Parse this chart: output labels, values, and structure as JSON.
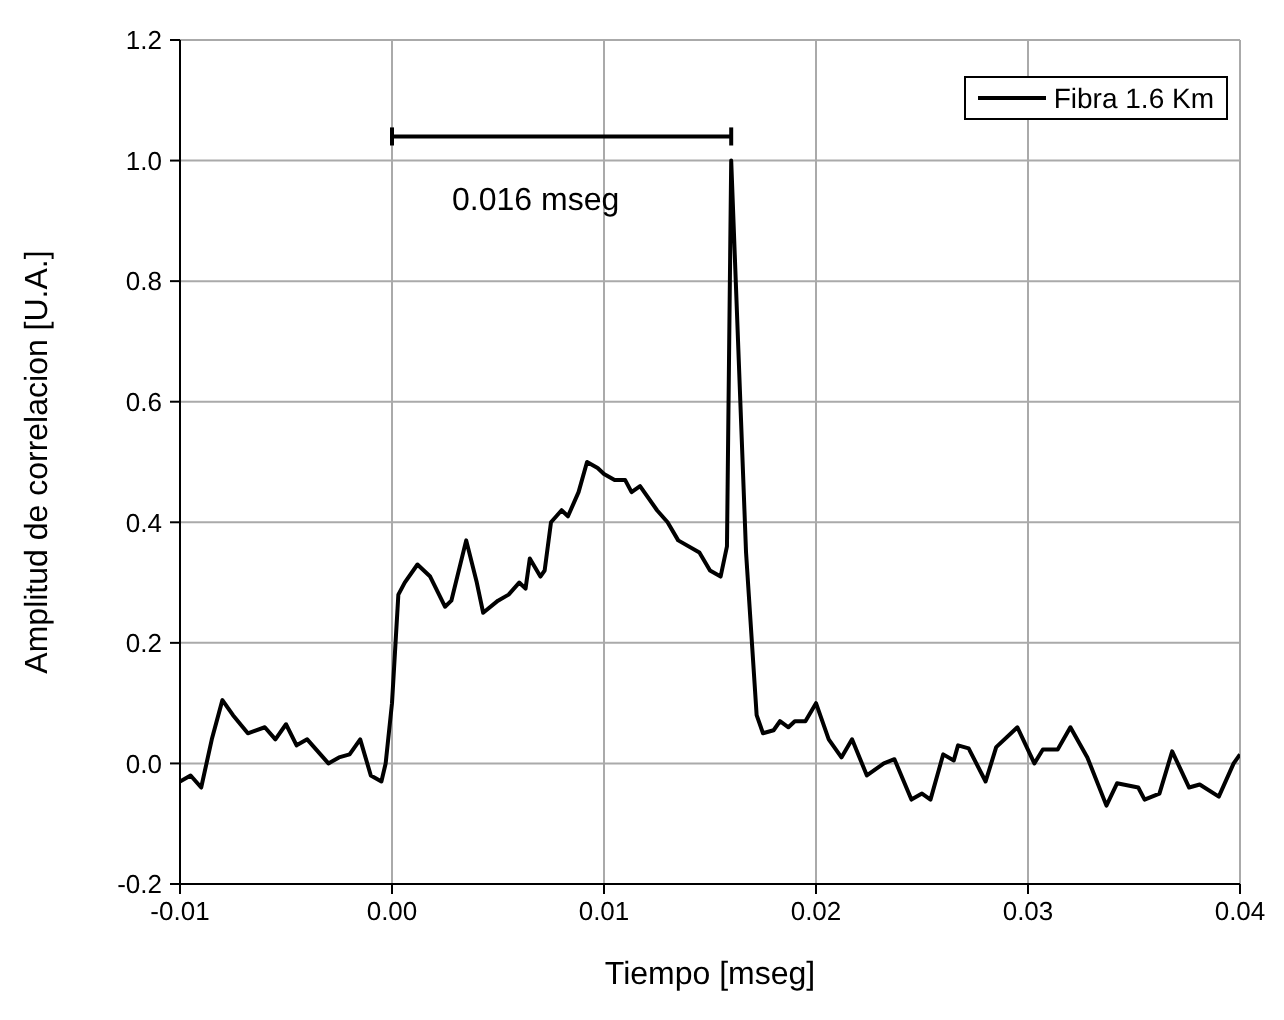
{
  "chart_data": {
    "type": "line",
    "xlabel": "Tiempo [mseg]",
    "ylabel": "Amplitud de correlacion [U.A.]",
    "xlim": [
      -0.01,
      0.04
    ],
    "xticks": [
      -0.01,
      {
        "value": 0.0,
        "label": "0.00"
      },
      0.01,
      0.02,
      0.03,
      0.04
    ],
    "ylim": [
      -0.2,
      1.2
    ],
    "yticks": [
      -0.2,
      {
        "value": 0.0,
        "label": "0.0"
      },
      0.2,
      0.4,
      0.6,
      0.8,
      {
        "value": 1.0,
        "label": "1.0"
      },
      1.2
    ],
    "grid": true,
    "legend": "top right",
    "marker": "none",
    "line_style": "solid",
    "annotations": [
      "0.016 mseg"
    ],
    "series": [
      {
        "name": "Fibra 1.6 Km",
        "color": "#000000",
        "x": [
          -0.01,
          -0.0095,
          -0.009,
          -0.0085,
          -0.008,
          -0.0075,
          -0.0068,
          -0.006,
          -0.0055,
          -0.005,
          -0.0045,
          -0.004,
          -0.0035,
          -0.003,
          -0.0025,
          -0.002,
          -0.0015,
          -0.001,
          -0.0005,
          -0.0003,
          0.0,
          0.0003,
          0.0006,
          0.0012,
          0.0018,
          0.0025,
          0.0028,
          0.0035,
          0.004,
          0.0043,
          0.005,
          0.0055,
          0.006,
          0.0063,
          0.0065,
          0.007,
          0.0072,
          0.0075,
          0.008,
          0.0083,
          0.0088,
          0.0092,
          0.0097,
          0.01,
          0.0105,
          0.011,
          0.0113,
          0.0117,
          0.0125,
          0.013,
          0.0135,
          0.0145,
          0.015,
          0.0155,
          0.0158,
          0.016,
          0.0167,
          0.0172,
          0.0175,
          0.018,
          0.0183,
          0.0187,
          0.019,
          0.0195,
          0.02,
          0.0206,
          0.0212,
          0.0217,
          0.0224,
          0.0232,
          0.0237,
          0.0245,
          0.025,
          0.0254,
          0.026,
          0.0265,
          0.0267,
          0.0272,
          0.028,
          0.0285,
          0.0295,
          0.0303,
          0.0307,
          0.0314,
          0.032,
          0.0328,
          0.0337,
          0.0342,
          0.0352,
          0.0355,
          0.0362,
          0.0368,
          0.0376,
          0.0381,
          0.039,
          0.0397,
          0.04
        ],
        "values": [
          -0.03,
          -0.02,
          -0.04,
          0.04,
          0.105,
          0.08,
          0.05,
          0.06,
          0.04,
          0.065,
          0.03,
          0.04,
          0.02,
          0.0,
          0.01,
          0.015,
          0.04,
          -0.02,
          -0.03,
          0.0,
          0.1,
          0.28,
          0.3,
          0.33,
          0.31,
          0.26,
          0.27,
          0.37,
          0.3,
          0.25,
          0.27,
          0.28,
          0.3,
          0.29,
          0.34,
          0.31,
          0.32,
          0.4,
          0.42,
          0.41,
          0.45,
          0.5,
          0.49,
          0.48,
          0.47,
          0.47,
          0.45,
          0.46,
          0.42,
          0.4,
          0.37,
          0.35,
          0.32,
          0.31,
          0.36,
          1.0,
          0.35,
          0.08,
          0.05,
          0.055,
          0.07,
          0.06,
          0.07,
          0.07,
          0.1,
          0.04,
          0.01,
          0.04,
          -0.02,
          0.0,
          0.007,
          -0.06,
          -0.05,
          -0.06,
          0.015,
          0.005,
          0.03,
          0.025,
          -0.03,
          0.027,
          0.06,
          0.0,
          0.023,
          0.023,
          0.06,
          0.01,
          -0.07,
          -0.033,
          -0.04,
          -0.06,
          -0.05,
          0.02,
          -0.04,
          -0.035,
          -0.055,
          0.0,
          0.015
        ]
      },
      {
        "color": "#000000",
        "x": [
          0.0,
          0.016
        ],
        "values": [
          1.04,
          1.04
        ],
        "errors": [
          0.015,
          0.015
        ]
      }
    ]
  }
}
